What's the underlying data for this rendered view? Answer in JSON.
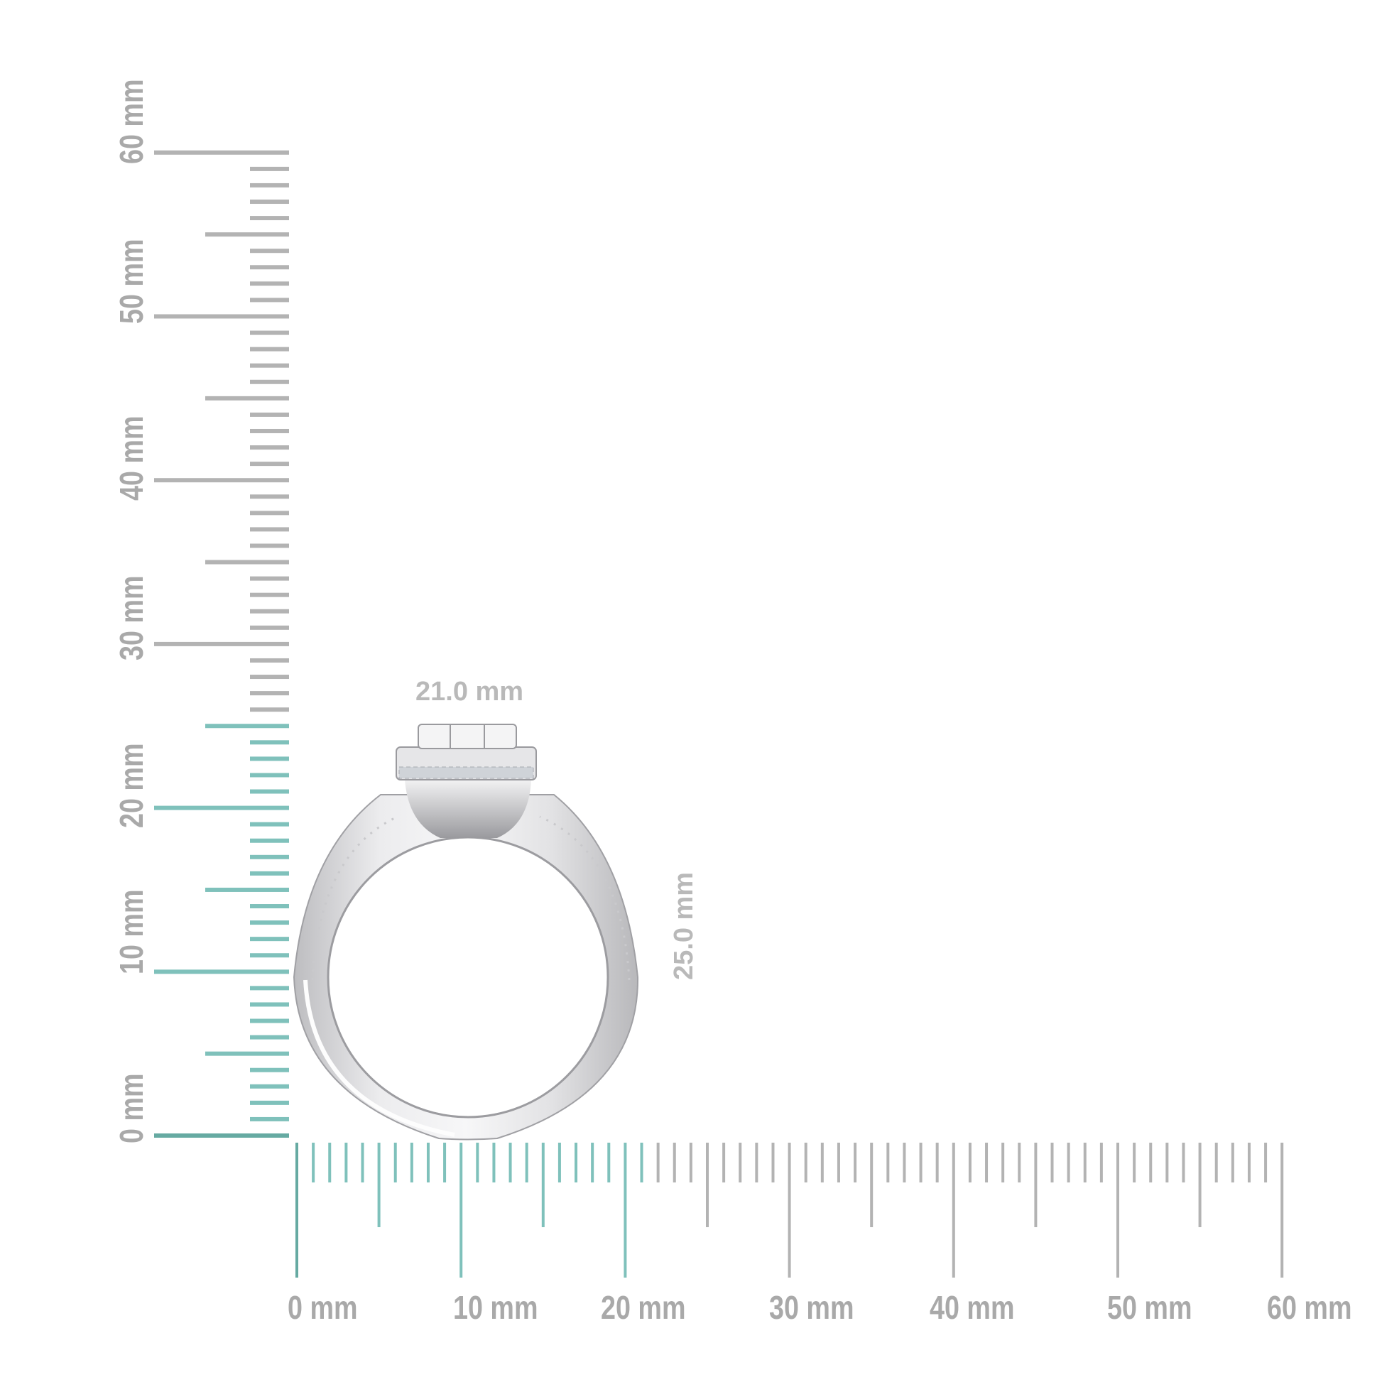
{
  "rulers": {
    "unit": "mm",
    "range": [
      0,
      60
    ],
    "highlight_color": "#7fc1bb",
    "zero_color": "#66aaa2",
    "base_color": "#b3b3b3",
    "horizontal": {
      "highlight_to": 21,
      "labels": [
        "0 mm",
        "10 mm",
        "20 mm",
        "30 mm",
        "40 mm",
        "50 mm",
        "60 mm"
      ]
    },
    "vertical": {
      "highlight_to": 25,
      "labels": [
        "0 mm",
        "10 mm",
        "20 mm",
        "30 mm",
        "40 mm",
        "50 mm",
        "60 mm"
      ]
    }
  },
  "dimensions": {
    "width": "21.0 mm",
    "height": "25.0 mm"
  },
  "product": {
    "type": "halo ring",
    "metal_color": "#d8d8da"
  }
}
